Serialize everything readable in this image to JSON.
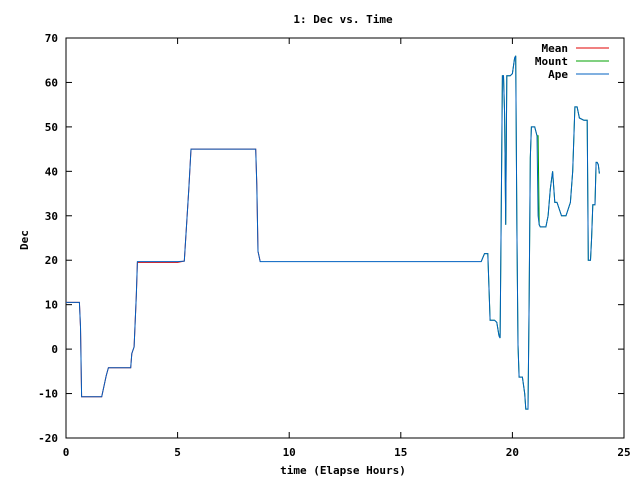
{
  "chart_data": {
    "type": "line",
    "title": "1: Dec vs. Time",
    "xlabel": "time (Elapse Hours)",
    "ylabel": "Dec",
    "xlim": [
      0,
      25
    ],
    "ylim": [
      -20,
      70
    ],
    "xticks": [
      0,
      5,
      10,
      15,
      20,
      25
    ],
    "yticks": [
      -20,
      -10,
      0,
      10,
      20,
      30,
      40,
      50,
      60,
      70
    ],
    "xtick_labels": [
      "0",
      "5",
      "10",
      "15",
      "20",
      "25"
    ],
    "ytick_labels": [
      "-20",
      "-10",
      "0",
      "10",
      "20",
      "30",
      "40",
      "50",
      "60",
      "70"
    ],
    "grid": false,
    "legend": "top-right",
    "series": [
      {
        "name": "Mean",
        "color": "#e00000",
        "x": [
          0,
          0.6,
          0.65,
          0.7,
          1.6,
          1.8,
          1.9,
          2.9,
          2.95,
          3.05,
          3.15,
          3.2,
          5.0,
          5.3,
          5.5,
          5.6,
          8.5,
          8.55,
          8.6,
          8.7
        ],
        "y": [
          10.5,
          10.5,
          5,
          -10.7,
          -10.7,
          -6,
          -4.2,
          -4.2,
          -1,
          0.5,
          12,
          19.5,
          19.5,
          19.8,
          36,
          45,
          45,
          37,
          22,
          19.7
        ]
      },
      {
        "name": "Mount",
        "color": "#00a000",
        "x": [
          18.6,
          18.75,
          18.9,
          19.0,
          19.1,
          19.2,
          19.3,
          19.4,
          19.45,
          19.5,
          19.55,
          19.6,
          19.65,
          19.7,
          19.75,
          19.8,
          19.9,
          20.0,
          20.1,
          20.15,
          20.2,
          20.25,
          20.3,
          20.35,
          20.45,
          20.55,
          20.6,
          20.7,
          20.75,
          20.8,
          20.85,
          20.9,
          21.0,
          21.1,
          21.15,
          21.2,
          21.25,
          21.3,
          21.5,
          21.6,
          21.7,
          21.8,
          21.9,
          22.0,
          22.2,
          22.4,
          22.6,
          22.7,
          22.8,
          22.9,
          23.0,
          23.2,
          23.35,
          23.4,
          23.5,
          23.55,
          23.6,
          23.65,
          23.7,
          23.75,
          23.8,
          23.85,
          23.9
        ],
        "y": [
          19.7,
          21.5,
          21.5,
          6.5,
          6.5,
          6.5,
          6,
          3,
          2.5,
          30,
          61.5,
          61.5,
          53,
          28,
          61.5,
          61.5,
          61.5,
          62,
          65.5,
          66,
          27,
          1,
          -6.3,
          -6.3,
          -6.3,
          -10,
          -13.5,
          -13.5,
          10,
          43,
          50,
          50,
          50,
          48,
          48,
          28,
          27.5,
          27.5,
          27.5,
          30,
          36,
          40,
          33,
          33,
          30,
          30,
          33,
          40,
          54.5,
          54.5,
          52,
          51.5,
          51.5,
          20,
          20,
          25,
          32.5,
          32.5,
          32.5,
          42,
          42,
          41.5,
          39.5
        ]
      },
      {
        "name": "Ape",
        "color": "#0060c0",
        "x": [
          0,
          0.6,
          0.65,
          0.7,
          1.6,
          1.8,
          1.9,
          2.9,
          2.95,
          3.05,
          3.15,
          3.2,
          5.0,
          5.3,
          5.5,
          5.6,
          8.5,
          8.55,
          8.6,
          8.7,
          18.6,
          18.75,
          18.9,
          19.0,
          19.1,
          19.2,
          19.3,
          19.4,
          19.45,
          19.5,
          19.55,
          19.6,
          19.65,
          19.7,
          19.75,
          19.8,
          19.9,
          20.0,
          20.1,
          20.15,
          20.2,
          20.25,
          20.3,
          20.35,
          20.45,
          20.55,
          20.6,
          20.7,
          20.75,
          20.8,
          20.85,
          20.9,
          21.0,
          21.1,
          21.15,
          21.2,
          21.25,
          21.3,
          21.5,
          21.6,
          21.7,
          21.8,
          21.9,
          22.0,
          22.2,
          22.4,
          22.6,
          22.7,
          22.8,
          22.9,
          23.0,
          23.2,
          23.35,
          23.4,
          23.5,
          23.55,
          23.6,
          23.65,
          23.7,
          23.75,
          23.8,
          23.85,
          23.9
        ],
        "y": [
          10.5,
          10.5,
          5,
          -10.7,
          -10.7,
          -6,
          -4.2,
          -4.2,
          -1,
          0.5,
          12,
          19.7,
          19.7,
          19.8,
          36,
          45,
          45,
          37,
          22,
          19.7,
          19.7,
          21.5,
          21.5,
          6.5,
          6.5,
          6.5,
          6,
          3,
          2.5,
          30,
          61.5,
          61.5,
          53,
          28,
          61.5,
          61.5,
          61.5,
          62,
          65.5,
          66,
          27,
          1,
          -6.3,
          -6.3,
          -6.3,
          -10,
          -13.5,
          -13.5,
          10,
          43,
          50,
          50,
          50,
          48,
          30,
          28,
          27.5,
          27.5,
          27.5,
          30,
          36,
          40,
          33,
          33,
          30,
          30,
          33,
          40,
          54.5,
          54.5,
          52,
          51.5,
          51.5,
          20,
          20,
          25,
          32.5,
          32.5,
          32.5,
          42,
          42,
          41.5,
          39.5
        ]
      }
    ]
  }
}
